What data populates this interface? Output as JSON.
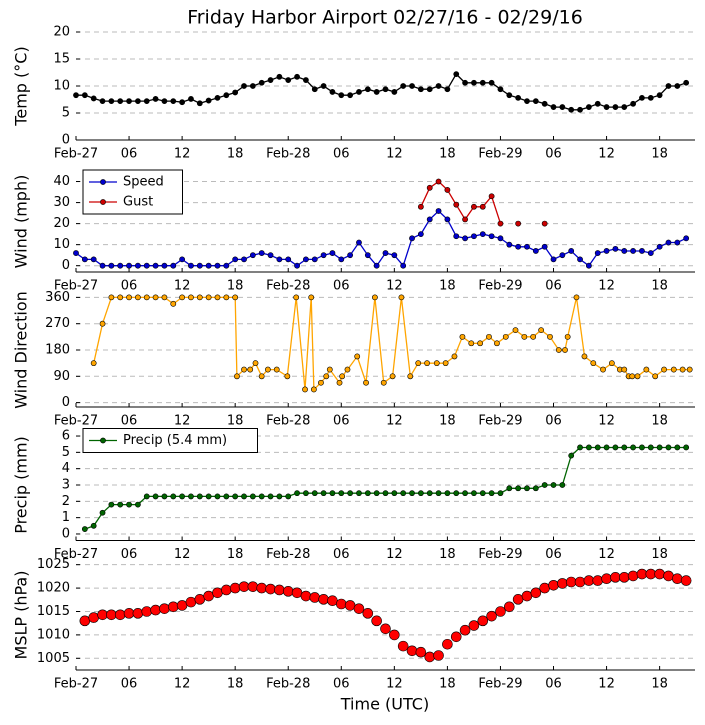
{
  "chart_data": [
    {
      "type": "line",
      "title": "Friday Harbor Airport 02/27/16 - 02/29/16",
      "ylabel": "Temp (°C)",
      "x": [
        0,
        1,
        2,
        3,
        4,
        5,
        6,
        7,
        8,
        9,
        10,
        11,
        12,
        13,
        14,
        15,
        16,
        17,
        18,
        19,
        20,
        21,
        22,
        23,
        24,
        25,
        26,
        27,
        28,
        29,
        30,
        31,
        32,
        33,
        34,
        35,
        36,
        37,
        38,
        39,
        40,
        41,
        42,
        43,
        44,
        45,
        46,
        47,
        48,
        49,
        50,
        51,
        52,
        53,
        54,
        55,
        56,
        57,
        58,
        59,
        60,
        61,
        62,
        63,
        64,
        65,
        66,
        67,
        68,
        69
      ],
      "series": [
        {
          "color": "#000000",
          "values": [
            8.3,
            8.3,
            7.7,
            7.2,
            7.2,
            7.2,
            7.2,
            7.2,
            7.2,
            7.6,
            7.2,
            7.2,
            7.0,
            7.6,
            6.8,
            7.3,
            7.8,
            8.3,
            8.8,
            10.0,
            10.0,
            10.6,
            11.1,
            11.7,
            11.1,
            11.7,
            11.1,
            9.4,
            10.0,
            8.9,
            8.3,
            8.3,
            8.9,
            9.4,
            8.9,
            9.4,
            8.9,
            10.0,
            10.0,
            9.4,
            9.4,
            10.0,
            9.4,
            12.2,
            10.6,
            10.6,
            10.6,
            10.6,
            9.4,
            8.3,
            7.8,
            7.2,
            7.2,
            6.7,
            6.1,
            6.1,
            5.6,
            5.6,
            6.1,
            6.7,
            6.1,
            6.1,
            6.1,
            6.7,
            7.8,
            7.8,
            8.3,
            10.0,
            10.0,
            10.6
          ]
        }
      ],
      "xlim": [
        0,
        70
      ],
      "xticks": [
        {
          "value": 0,
          "label": "Feb-27"
        },
        {
          "value": 6,
          "label": "06"
        },
        {
          "value": 12,
          "label": "12"
        },
        {
          "value": 18,
          "label": "18"
        },
        {
          "value": 24,
          "label": "Feb-28"
        },
        {
          "value": 30,
          "label": "06"
        },
        {
          "value": 36,
          "label": "12"
        },
        {
          "value": 42,
          "label": "18"
        },
        {
          "value": 48,
          "label": "Feb-29"
        },
        {
          "value": 54,
          "label": "06"
        },
        {
          "value": 60,
          "label": "12"
        },
        {
          "value": 66,
          "label": "18"
        }
      ],
      "ylim": [
        0,
        20
      ],
      "yticks": [
        0,
        5,
        10,
        15,
        20
      ],
      "grid": true,
      "line": true
    },
    {
      "type": "line",
      "ylabel": "Wind (mph)",
      "x": [
        0,
        1,
        2,
        3,
        4,
        5,
        6,
        7,
        8,
        9,
        10,
        11,
        12,
        13,
        14,
        15,
        16,
        17,
        18,
        19,
        20,
        21,
        22,
        23,
        24,
        25,
        26,
        27,
        28,
        29,
        30,
        31,
        32,
        33,
        34,
        35,
        36,
        37,
        38,
        39,
        40,
        41,
        42,
        43,
        44,
        45,
        46,
        47,
        48,
        49,
        50,
        51,
        52,
        53,
        54,
        55,
        56,
        57,
        58,
        59,
        60,
        61,
        62,
        63,
        64,
        65,
        66,
        67,
        68,
        69
      ],
      "series": [
        {
          "name": "Speed",
          "color": "#0000cc",
          "values": [
            6,
            3,
            3,
            0,
            0,
            0,
            0,
            0,
            0,
            0,
            0,
            0,
            3,
            0,
            0,
            0,
            0,
            0,
            3,
            3,
            5,
            6,
            5,
            3,
            3,
            0,
            3,
            3,
            5,
            6,
            3,
            5,
            11,
            5,
            0,
            6,
            5,
            0,
            13,
            15,
            22,
            26,
            22,
            14,
            13,
            14,
            15,
            14,
            13,
            10,
            9,
            9,
            7,
            9,
            3,
            5,
            7,
            3,
            0,
            6,
            7,
            8,
            7,
            7,
            7,
            6,
            9,
            11,
            11,
            13
          ]
        },
        {
          "name": "Gust",
          "color": "#cc0000",
          "values": [
            null,
            null,
            null,
            null,
            null,
            null,
            null,
            null,
            null,
            null,
            null,
            null,
            null,
            null,
            null,
            null,
            null,
            null,
            null,
            null,
            null,
            null,
            null,
            null,
            null,
            null,
            null,
            null,
            null,
            null,
            null,
            null,
            null,
            null,
            null,
            null,
            null,
            null,
            null,
            28,
            37,
            40,
            36,
            29,
            22,
            28,
            28,
            33,
            20,
            null,
            20,
            null,
            null,
            20,
            null,
            null,
            null,
            null,
            null,
            null,
            null,
            null,
            null,
            null,
            null,
            null,
            null,
            null,
            null,
            null
          ]
        }
      ],
      "xlim": [
        0,
        70
      ],
      "xticks": [
        {
          "value": 0,
          "label": "Feb-27"
        },
        {
          "value": 6,
          "label": "06"
        },
        {
          "value": 12,
          "label": "12"
        },
        {
          "value": 18,
          "label": "18"
        },
        {
          "value": 24,
          "label": "Feb-28"
        },
        {
          "value": 30,
          "label": "06"
        },
        {
          "value": 36,
          "label": "12"
        },
        {
          "value": 42,
          "label": "18"
        },
        {
          "value": 48,
          "label": "Feb-29"
        },
        {
          "value": 54,
          "label": "06"
        },
        {
          "value": 60,
          "label": "12"
        },
        {
          "value": 66,
          "label": "18"
        }
      ],
      "ylim": [
        -3,
        45
      ],
      "yticks": [
        0,
        10,
        20,
        30,
        40
      ],
      "grid": true,
      "line": true,
      "legend": "upper left"
    },
    {
      "type": "line",
      "ylabel": "Wind Direction",
      "series": [
        {
          "color": "#ffa500",
          "x": [
            2,
            3,
            4,
            5,
            6,
            7,
            8,
            9,
            10,
            11,
            12,
            13,
            14,
            15,
            16,
            17,
            18,
            18.2,
            19,
            19.7,
            20.3,
            21,
            21.7,
            22.7,
            23.9,
            24.9,
            25.9,
            26.6,
            26.9,
            27.7,
            28.3,
            28.7,
            29.8,
            30.1,
            30.7,
            31.8,
            32.8,
            33.8,
            34.8,
            35.8,
            36.8,
            37.8,
            38.7,
            39.7,
            40.8,
            41.8,
            42.8,
            43.7,
            44.7,
            45.7,
            46.7,
            47.6,
            48.6,
            49.7,
            50.7,
            51.7,
            52.6,
            53.6,
            54.6,
            55.3,
            55.6,
            56.6,
            57.5,
            58.5,
            59.6,
            60.6,
            61.5,
            62,
            62.5,
            62.9,
            63.5,
            64.5,
            65.5,
            66.5,
            67.6,
            68.6,
            69.4
          ],
          "values": [
            135,
            270,
            360,
            360,
            360,
            360,
            360,
            360,
            360,
            338,
            360,
            360,
            360,
            360,
            360,
            360,
            360,
            90,
            113,
            113,
            135,
            90,
            113,
            113,
            90,
            360,
            45,
            360,
            45,
            68,
            90,
            113,
            68,
            90,
            113,
            158,
            68,
            360,
            68,
            90,
            360,
            90,
            135,
            135,
            135,
            135,
            158,
            225,
            203,
            203,
            225,
            203,
            225,
            248,
            225,
            225,
            248,
            225,
            180,
            180,
            225,
            360,
            158,
            135,
            113,
            135,
            113,
            113,
            90,
            90,
            90,
            113,
            90,
            113,
            113,
            113,
            113
          ]
        }
      ],
      "xlim": [
        0,
        70
      ],
      "xticks": [
        {
          "value": 0,
          "label": "Feb-27"
        },
        {
          "value": 6,
          "label": "06"
        },
        {
          "value": 12,
          "label": "12"
        },
        {
          "value": 18,
          "label": "18"
        },
        {
          "value": 24,
          "label": "Feb-28"
        },
        {
          "value": 30,
          "label": "06"
        },
        {
          "value": 36,
          "label": "12"
        },
        {
          "value": 42,
          "label": "18"
        },
        {
          "value": 48,
          "label": "Feb-29"
        },
        {
          "value": 54,
          "label": "06"
        },
        {
          "value": 60,
          "label": "12"
        },
        {
          "value": 66,
          "label": "18"
        }
      ],
      "ylim": [
        -15,
        375
      ],
      "yticks": [
        0,
        90,
        180,
        270,
        360
      ],
      "grid": true,
      "line": true
    },
    {
      "type": "line",
      "ylabel": "Precip (mm)",
      "x": [
        1,
        2,
        3,
        4,
        5,
        6,
        7,
        8,
        9,
        10,
        11,
        12,
        13,
        14,
        15,
        16,
        17,
        18,
        19,
        20,
        21,
        22,
        23,
        24,
        25,
        26,
        27,
        28,
        29,
        30,
        31,
        32,
        33,
        34,
        35,
        36,
        37,
        38,
        39,
        40,
        41,
        42,
        43,
        44,
        45,
        46,
        47,
        48,
        49,
        50,
        51,
        52,
        53,
        54,
        55,
        56,
        57,
        58,
        59,
        60,
        61,
        62,
        63,
        64,
        65,
        66,
        67,
        68,
        69
      ],
      "series": [
        {
          "name": "Precip (5.4 mm)",
          "color": "#006400",
          "values": [
            0.3,
            0.5,
            1.3,
            1.8,
            1.8,
            1.8,
            1.8,
            2.3,
            2.3,
            2.3,
            2.3,
            2.3,
            2.3,
            2.3,
            2.3,
            2.3,
            2.3,
            2.3,
            2.3,
            2.3,
            2.3,
            2.3,
            2.3,
            2.3,
            2.5,
            2.5,
            2.5,
            2.5,
            2.5,
            2.5,
            2.5,
            2.5,
            2.5,
            2.5,
            2.5,
            2.5,
            2.5,
            2.5,
            2.5,
            2.5,
            2.5,
            2.5,
            2.5,
            2.5,
            2.5,
            2.5,
            2.5,
            2.5,
            2.8,
            2.8,
            2.8,
            2.8,
            3.0,
            3.0,
            3.0,
            4.8,
            5.3,
            5.3,
            5.3,
            5.3,
            5.3,
            5.3,
            5.3,
            5.3,
            5.3,
            5.3,
            5.3,
            5.3,
            5.3
          ]
        }
      ],
      "xlim": [
        0,
        70
      ],
      "xticks": [
        {
          "value": 0,
          "label": "Feb-27"
        },
        {
          "value": 6,
          "label": "06"
        },
        {
          "value": 12,
          "label": "12"
        },
        {
          "value": 18,
          "label": "18"
        },
        {
          "value": 24,
          "label": "Feb-28"
        },
        {
          "value": 30,
          "label": "06"
        },
        {
          "value": 36,
          "label": "12"
        },
        {
          "value": 42,
          "label": "18"
        },
        {
          "value": 48,
          "label": "Feb-29"
        },
        {
          "value": 54,
          "label": "06"
        },
        {
          "value": 60,
          "label": "12"
        },
        {
          "value": 66,
          "label": "18"
        }
      ],
      "ylim": [
        -0.4,
        6.4
      ],
      "yticks": [
        0,
        1,
        2,
        3,
        4,
        5,
        6
      ],
      "grid": true,
      "line": true,
      "legend": "upper left"
    },
    {
      "type": "line",
      "ylabel": "MSLP (hPa)",
      "xlabel": "Time (UTC)",
      "x": [
        1,
        2,
        3,
        4,
        5,
        6,
        7,
        8,
        9,
        10,
        11,
        12,
        13,
        14,
        15,
        16,
        17,
        18,
        19,
        20,
        21,
        22,
        23,
        24,
        25,
        26,
        27,
        28,
        29,
        30,
        31,
        32,
        33,
        34,
        35,
        36,
        37,
        38,
        39,
        40,
        41,
        42,
        43,
        44,
        45,
        46,
        47,
        48,
        49,
        50,
        51,
        52,
        53,
        54,
        55,
        56,
        57,
        58,
        59,
        60,
        61,
        62,
        63,
        64,
        65,
        66,
        67,
        68,
        69
      ],
      "series": [
        {
          "color": "#ff0000",
          "values": [
            1013,
            1013.7,
            1014.3,
            1014.3,
            1014.3,
            1014.6,
            1014.6,
            1015,
            1015.3,
            1015.6,
            1016,
            1016.3,
            1017,
            1017.6,
            1018.3,
            1019,
            1019.6,
            1020,
            1020.3,
            1020.3,
            1020,
            1019.8,
            1019.6,
            1019.3,
            1019,
            1018.3,
            1018,
            1017.6,
            1017.3,
            1016.6,
            1016.3,
            1015.6,
            1014.6,
            1013,
            1011.3,
            1010,
            1007.6,
            1006.6,
            1006.3,
            1005.3,
            1005.6,
            1008,
            1009.6,
            1011,
            1012,
            1013,
            1014,
            1015,
            1016,
            1017.6,
            1018.3,
            1019,
            1020,
            1020.6,
            1021,
            1021.3,
            1021.3,
            1021.6,
            1021.6,
            1022,
            1022.3,
            1022.3,
            1022.6,
            1023,
            1023,
            1023,
            1022.6,
            1022,
            1021.6
          ]
        }
      ],
      "xlim": [
        0,
        70
      ],
      "xticks": [
        {
          "value": 0,
          "label": "Feb-27"
        },
        {
          "value": 6,
          "label": "06"
        },
        {
          "value": 12,
          "label": "12"
        },
        {
          "value": 18,
          "label": "18"
        },
        {
          "value": 24,
          "label": "Feb-28"
        },
        {
          "value": 30,
          "label": "06"
        },
        {
          "value": 36,
          "label": "12"
        },
        {
          "value": 42,
          "label": "18"
        },
        {
          "value": 48,
          "label": "Feb-29"
        },
        {
          "value": 54,
          "label": "06"
        },
        {
          "value": 60,
          "label": "12"
        },
        {
          "value": 66,
          "label": "18"
        }
      ],
      "ylim": [
        1002.5,
        1026
      ],
      "yticks": [
        1005,
        1010,
        1015,
        1020,
        1025
      ],
      "grid": true,
      "line": false
    }
  ]
}
